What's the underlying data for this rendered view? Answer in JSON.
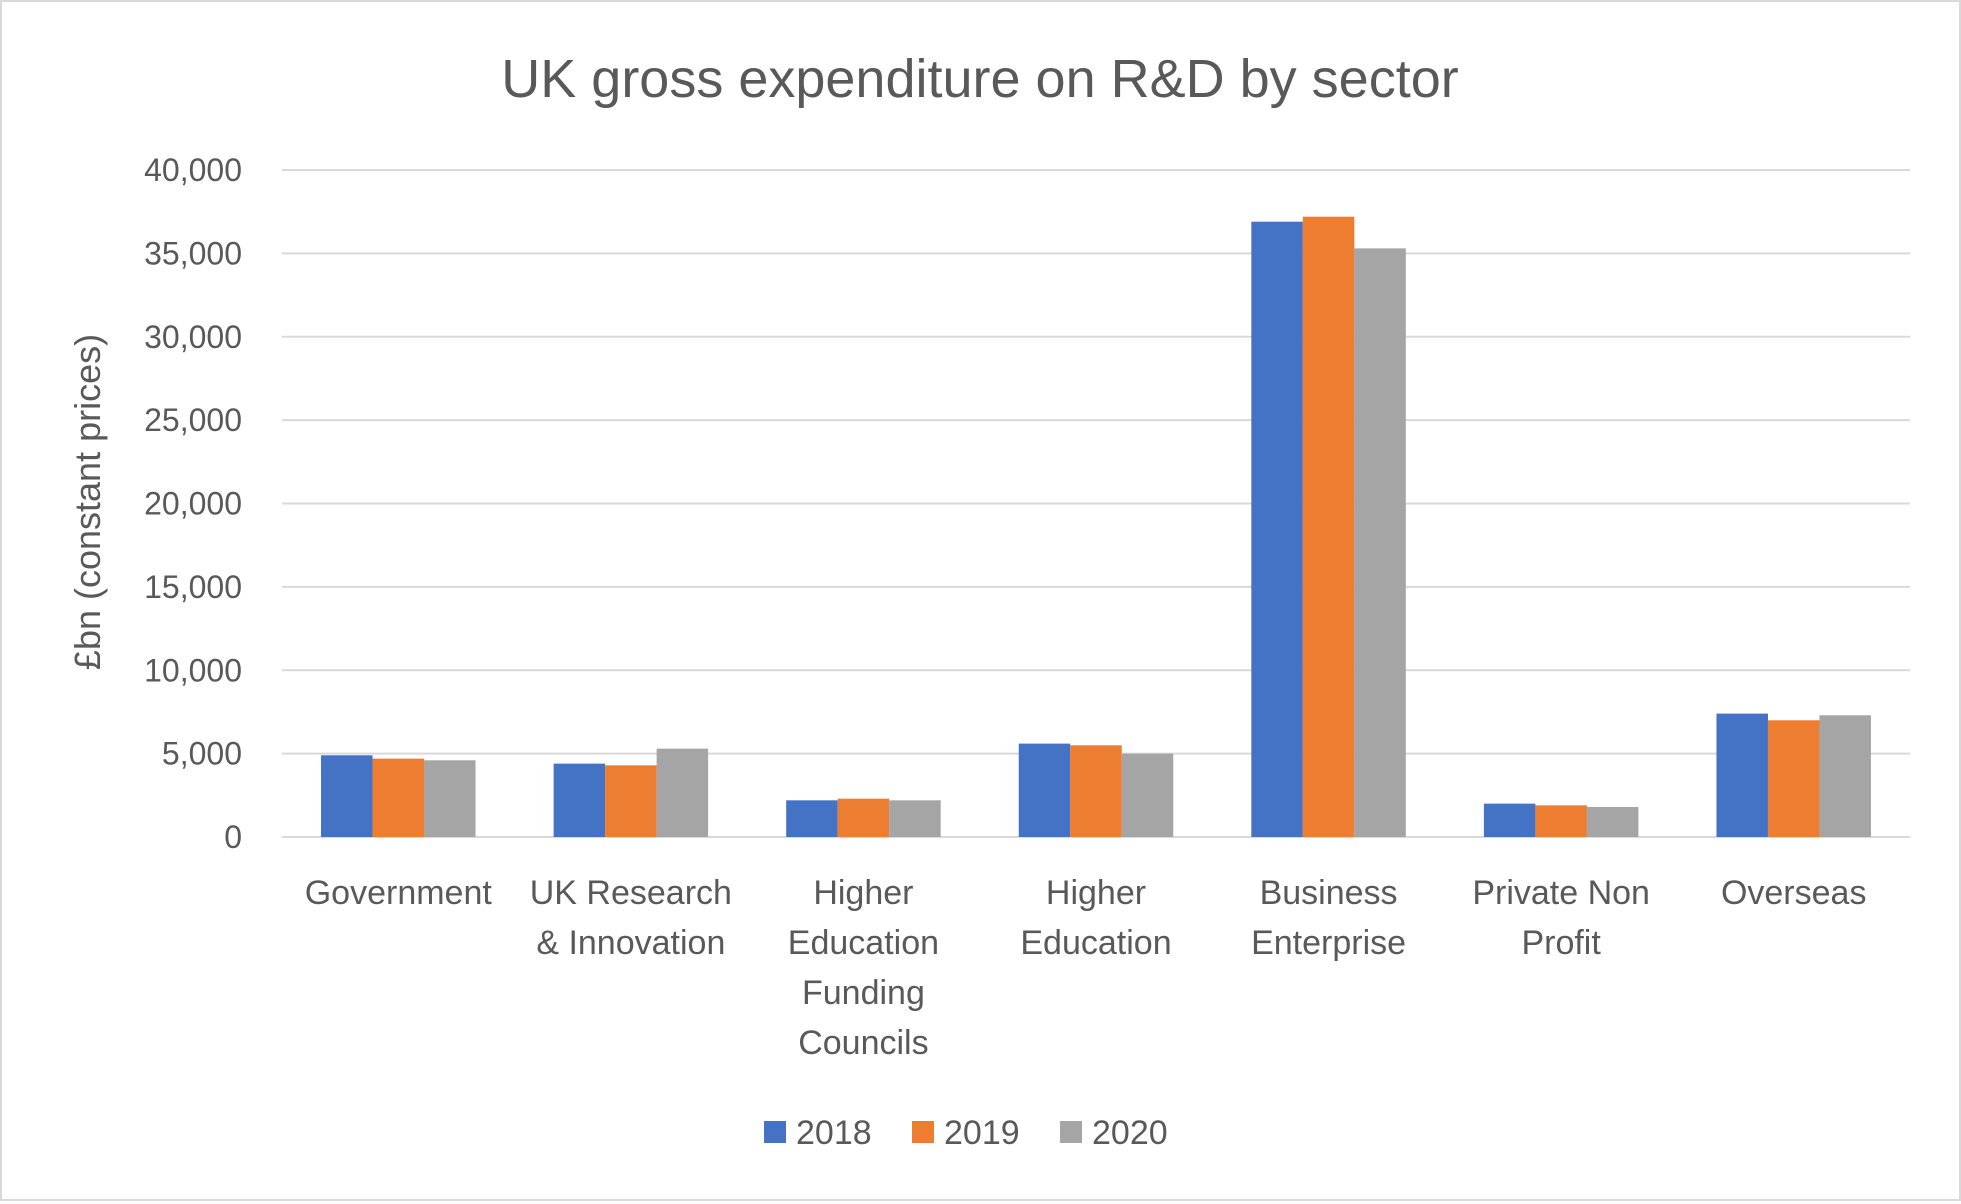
{
  "chart_data": {
    "type": "bar",
    "title": "UK gross expenditure on R&D by sector",
    "xlabel": "",
    "ylabel": "£bn (constant prices)",
    "ylim": [
      0,
      40000
    ],
    "yticks": [
      0,
      5000,
      10000,
      15000,
      20000,
      25000,
      30000,
      35000,
      40000
    ],
    "ytick_labels": [
      "0",
      "5,000",
      "10,000",
      "15,000",
      "20,000",
      "25,000",
      "30,000",
      "35,000",
      "40,000"
    ],
    "categories": [
      [
        "Government"
      ],
      [
        "UK Research",
        "& Innovation"
      ],
      [
        "Higher",
        "Education",
        "Funding",
        "Councils"
      ],
      [
        "Higher",
        "Education"
      ],
      [
        "Business",
        "Enterprise"
      ],
      [
        "Private Non",
        "Profit"
      ],
      [
        "Overseas"
      ]
    ],
    "series": [
      {
        "name": "2018",
        "color": "#4472c4",
        "values": [
          4900,
          4400,
          2200,
          5600,
          36900,
          2000,
          7400
        ]
      },
      {
        "name": "2019",
        "color": "#ed7d31",
        "values": [
          4700,
          4300,
          2300,
          5500,
          37200,
          1900,
          7000
        ]
      },
      {
        "name": "2020",
        "color": "#a5a5a5",
        "values": [
          4600,
          5300,
          2200,
          5000,
          35300,
          1800,
          7300
        ]
      }
    ],
    "grid": true,
    "gridline_color": "#d9d9d9",
    "legend_position": "bottom"
  }
}
